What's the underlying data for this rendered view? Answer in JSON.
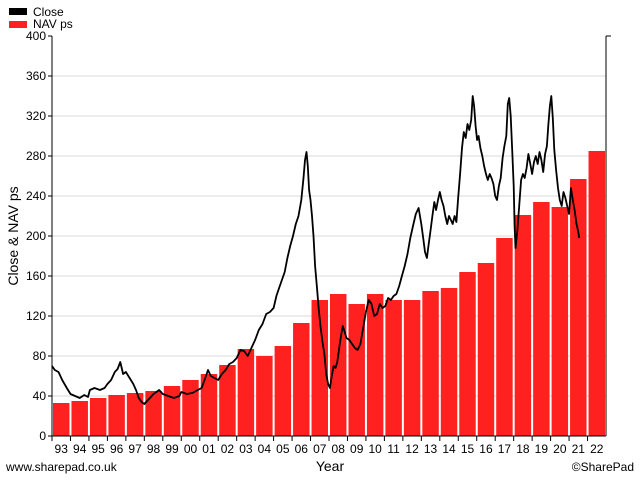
{
  "legend": {
    "close_label": "Close",
    "nav_label": "NAV ps",
    "close_color": "#000000",
    "nav_color": "#ff2020"
  },
  "footer": {
    "left": "www.sharepad.co.uk",
    "right": "©SharePad"
  },
  "chart_data": {
    "type": "bar",
    "xlabel": "Year",
    "ylabel": "Close & NAV ps",
    "ylim": [
      0,
      400
    ],
    "yticks": [
      0,
      40,
      80,
      120,
      160,
      200,
      240,
      280,
      320,
      360,
      400
    ],
    "categories": [
      "93",
      "94",
      "95",
      "96",
      "97",
      "98",
      "99",
      "00",
      "01",
      "02",
      "03",
      "04",
      "05",
      "06",
      "07",
      "08",
      "09",
      "10",
      "11",
      "12",
      "13",
      "14",
      "15",
      "16",
      "17",
      "18",
      "19",
      "20",
      "21",
      "22"
    ],
    "grid": "horizontal",
    "legend_position": "top-left",
    "series": [
      {
        "name": "NAV ps",
        "type": "bar",
        "values": [
          33,
          35,
          38,
          41,
          43,
          45,
          50,
          56,
          62,
          71,
          87,
          80,
          90,
          113,
          136,
          142,
          132,
          142,
          136,
          136,
          145,
          148,
          164,
          173,
          198,
          221,
          234,
          229,
          257,
          285
        ]
      },
      {
        "name": "Close",
        "type": "line",
        "points": [
          [
            0.0,
            70
          ],
          [
            0.15,
            66
          ],
          [
            0.35,
            64
          ],
          [
            0.55,
            56
          ],
          [
            0.8,
            48
          ],
          [
            1.0,
            42
          ],
          [
            1.25,
            40
          ],
          [
            1.5,
            38
          ],
          [
            1.75,
            41
          ],
          [
            1.95,
            39
          ],
          [
            2.05,
            46
          ],
          [
            2.3,
            48
          ],
          [
            2.6,
            46
          ],
          [
            2.85,
            48
          ],
          [
            3.0,
            52
          ],
          [
            3.2,
            56
          ],
          [
            3.4,
            64
          ],
          [
            3.55,
            67
          ],
          [
            3.7,
            74
          ],
          [
            3.85,
            62
          ],
          [
            4.0,
            64
          ],
          [
            4.2,
            58
          ],
          [
            4.4,
            52
          ],
          [
            4.55,
            46
          ],
          [
            4.7,
            38
          ],
          [
            4.85,
            34
          ],
          [
            5.0,
            32
          ],
          [
            5.2,
            36
          ],
          [
            5.5,
            42
          ],
          [
            5.8,
            46
          ],
          [
            6.0,
            42
          ],
          [
            6.3,
            40
          ],
          [
            6.6,
            38
          ],
          [
            6.9,
            40
          ],
          [
            7.0,
            44
          ],
          [
            7.3,
            42
          ],
          [
            7.6,
            43
          ],
          [
            7.9,
            46
          ],
          [
            8.1,
            48
          ],
          [
            8.3,
            58
          ],
          [
            8.45,
            66
          ],
          [
            8.6,
            60
          ],
          [
            8.8,
            58
          ],
          [
            9.0,
            56
          ],
          [
            9.2,
            62
          ],
          [
            9.4,
            66
          ],
          [
            9.6,
            72
          ],
          [
            9.8,
            74
          ],
          [
            10.0,
            78
          ],
          [
            10.2,
            86
          ],
          [
            10.4,
            85
          ],
          [
            10.6,
            80
          ],
          [
            10.8,
            88
          ],
          [
            11.0,
            96
          ],
          [
            11.2,
            106
          ],
          [
            11.4,
            112
          ],
          [
            11.6,
            122
          ],
          [
            11.8,
            124
          ],
          [
            12.0,
            128
          ],
          [
            12.15,
            140
          ],
          [
            12.3,
            148
          ],
          [
            12.45,
            156
          ],
          [
            12.6,
            164
          ],
          [
            12.75,
            178
          ],
          [
            12.9,
            190
          ],
          [
            13.05,
            200
          ],
          [
            13.2,
            212
          ],
          [
            13.35,
            220
          ],
          [
            13.5,
            236
          ],
          [
            13.62,
            258
          ],
          [
            13.7,
            276
          ],
          [
            13.78,
            284
          ],
          [
            13.85,
            270
          ],
          [
            13.92,
            246
          ],
          [
            14.0,
            236
          ],
          [
            14.08,
            220
          ],
          [
            14.16,
            200
          ],
          [
            14.25,
            170
          ],
          [
            14.35,
            148
          ],
          [
            14.45,
            126
          ],
          [
            14.55,
            108
          ],
          [
            14.65,
            94
          ],
          [
            14.75,
            82
          ],
          [
            14.85,
            62
          ],
          [
            14.95,
            52
          ],
          [
            15.05,
            48
          ],
          [
            15.15,
            60
          ],
          [
            15.25,
            70
          ],
          [
            15.35,
            68
          ],
          [
            15.45,
            74
          ],
          [
            15.55,
            88
          ],
          [
            15.65,
            100
          ],
          [
            15.75,
            110
          ],
          [
            15.85,
            104
          ],
          [
            15.95,
            98
          ],
          [
            16.1,
            96
          ],
          [
            16.25,
            92
          ],
          [
            16.4,
            88
          ],
          [
            16.55,
            86
          ],
          [
            16.7,
            92
          ],
          [
            16.85,
            108
          ],
          [
            17.0,
            124
          ],
          [
            17.15,
            136
          ],
          [
            17.3,
            132
          ],
          [
            17.45,
            120
          ],
          [
            17.6,
            122
          ],
          [
            17.75,
            132
          ],
          [
            17.9,
            128
          ],
          [
            18.05,
            130
          ],
          [
            18.2,
            138
          ],
          [
            18.35,
            136
          ],
          [
            18.5,
            140
          ],
          [
            18.65,
            142
          ],
          [
            18.8,
            150
          ],
          [
            18.95,
            160
          ],
          [
            19.1,
            170
          ],
          [
            19.25,
            182
          ],
          [
            19.4,
            198
          ],
          [
            19.55,
            210
          ],
          [
            19.7,
            222
          ],
          [
            19.85,
            228
          ],
          [
            20.0,
            212
          ],
          [
            20.1,
            198
          ],
          [
            20.2,
            184
          ],
          [
            20.3,
            178
          ],
          [
            20.4,
            192
          ],
          [
            20.5,
            206
          ],
          [
            20.6,
            220
          ],
          [
            20.7,
            234
          ],
          [
            20.8,
            226
          ],
          [
            20.9,
            236
          ],
          [
            21.0,
            244
          ],
          [
            21.1,
            236
          ],
          [
            21.2,
            230
          ],
          [
            21.3,
            220
          ],
          [
            21.4,
            212
          ],
          [
            21.5,
            220
          ],
          [
            21.6,
            216
          ],
          [
            21.7,
            212
          ],
          [
            21.8,
            220
          ],
          [
            21.9,
            214
          ],
          [
            22.0,
            240
          ],
          [
            22.1,
            262
          ],
          [
            22.2,
            288
          ],
          [
            22.3,
            304
          ],
          [
            22.4,
            298
          ],
          [
            22.5,
            312
          ],
          [
            22.6,
            306
          ],
          [
            22.7,
            316
          ],
          [
            22.78,
            340
          ],
          [
            22.86,
            330
          ],
          [
            22.94,
            310
          ],
          [
            23.02,
            296
          ],
          [
            23.1,
            300
          ],
          [
            23.2,
            288
          ],
          [
            23.3,
            280
          ],
          [
            23.4,
            270
          ],
          [
            23.5,
            262
          ],
          [
            23.6,
            256
          ],
          [
            23.7,
            262
          ],
          [
            23.8,
            258
          ],
          [
            23.9,
            252
          ],
          [
            24.0,
            240
          ],
          [
            24.1,
            236
          ],
          [
            24.2,
            250
          ],
          [
            24.3,
            258
          ],
          [
            24.4,
            278
          ],
          [
            24.5,
            290
          ],
          [
            24.6,
            300
          ],
          [
            24.68,
            332
          ],
          [
            24.76,
            338
          ],
          [
            24.84,
            320
          ],
          [
            24.92,
            286
          ],
          [
            25.0,
            250
          ],
          [
            25.05,
            210
          ],
          [
            25.1,
            188
          ],
          [
            25.2,
            206
          ],
          [
            25.3,
            230
          ],
          [
            25.4,
            256
          ],
          [
            25.5,
            262
          ],
          [
            25.6,
            258
          ],
          [
            25.7,
            268
          ],
          [
            25.8,
            282
          ],
          [
            25.9,
            272
          ],
          [
            26.0,
            262
          ],
          [
            26.1,
            274
          ],
          [
            26.2,
            280
          ],
          [
            26.3,
            272
          ],
          [
            26.4,
            284
          ],
          [
            26.5,
            276
          ],
          [
            26.6,
            264
          ],
          [
            26.7,
            282
          ],
          [
            26.8,
            290
          ],
          [
            26.88,
            312
          ],
          [
            26.96,
            330
          ],
          [
            27.04,
            340
          ],
          [
            27.12,
            318
          ],
          [
            27.2,
            286
          ],
          [
            27.3,
            266
          ],
          [
            27.4,
            248
          ],
          [
            27.5,
            236
          ],
          [
            27.6,
            230
          ],
          [
            27.7,
            244
          ],
          [
            27.8,
            238
          ],
          [
            27.9,
            230
          ],
          [
            28.0,
            222
          ],
          [
            28.1,
            248
          ],
          [
            28.2,
            236
          ],
          [
            28.3,
            226
          ],
          [
            28.4,
            212
          ],
          [
            28.5,
            204
          ],
          [
            28.55,
            198
          ]
        ]
      }
    ]
  }
}
